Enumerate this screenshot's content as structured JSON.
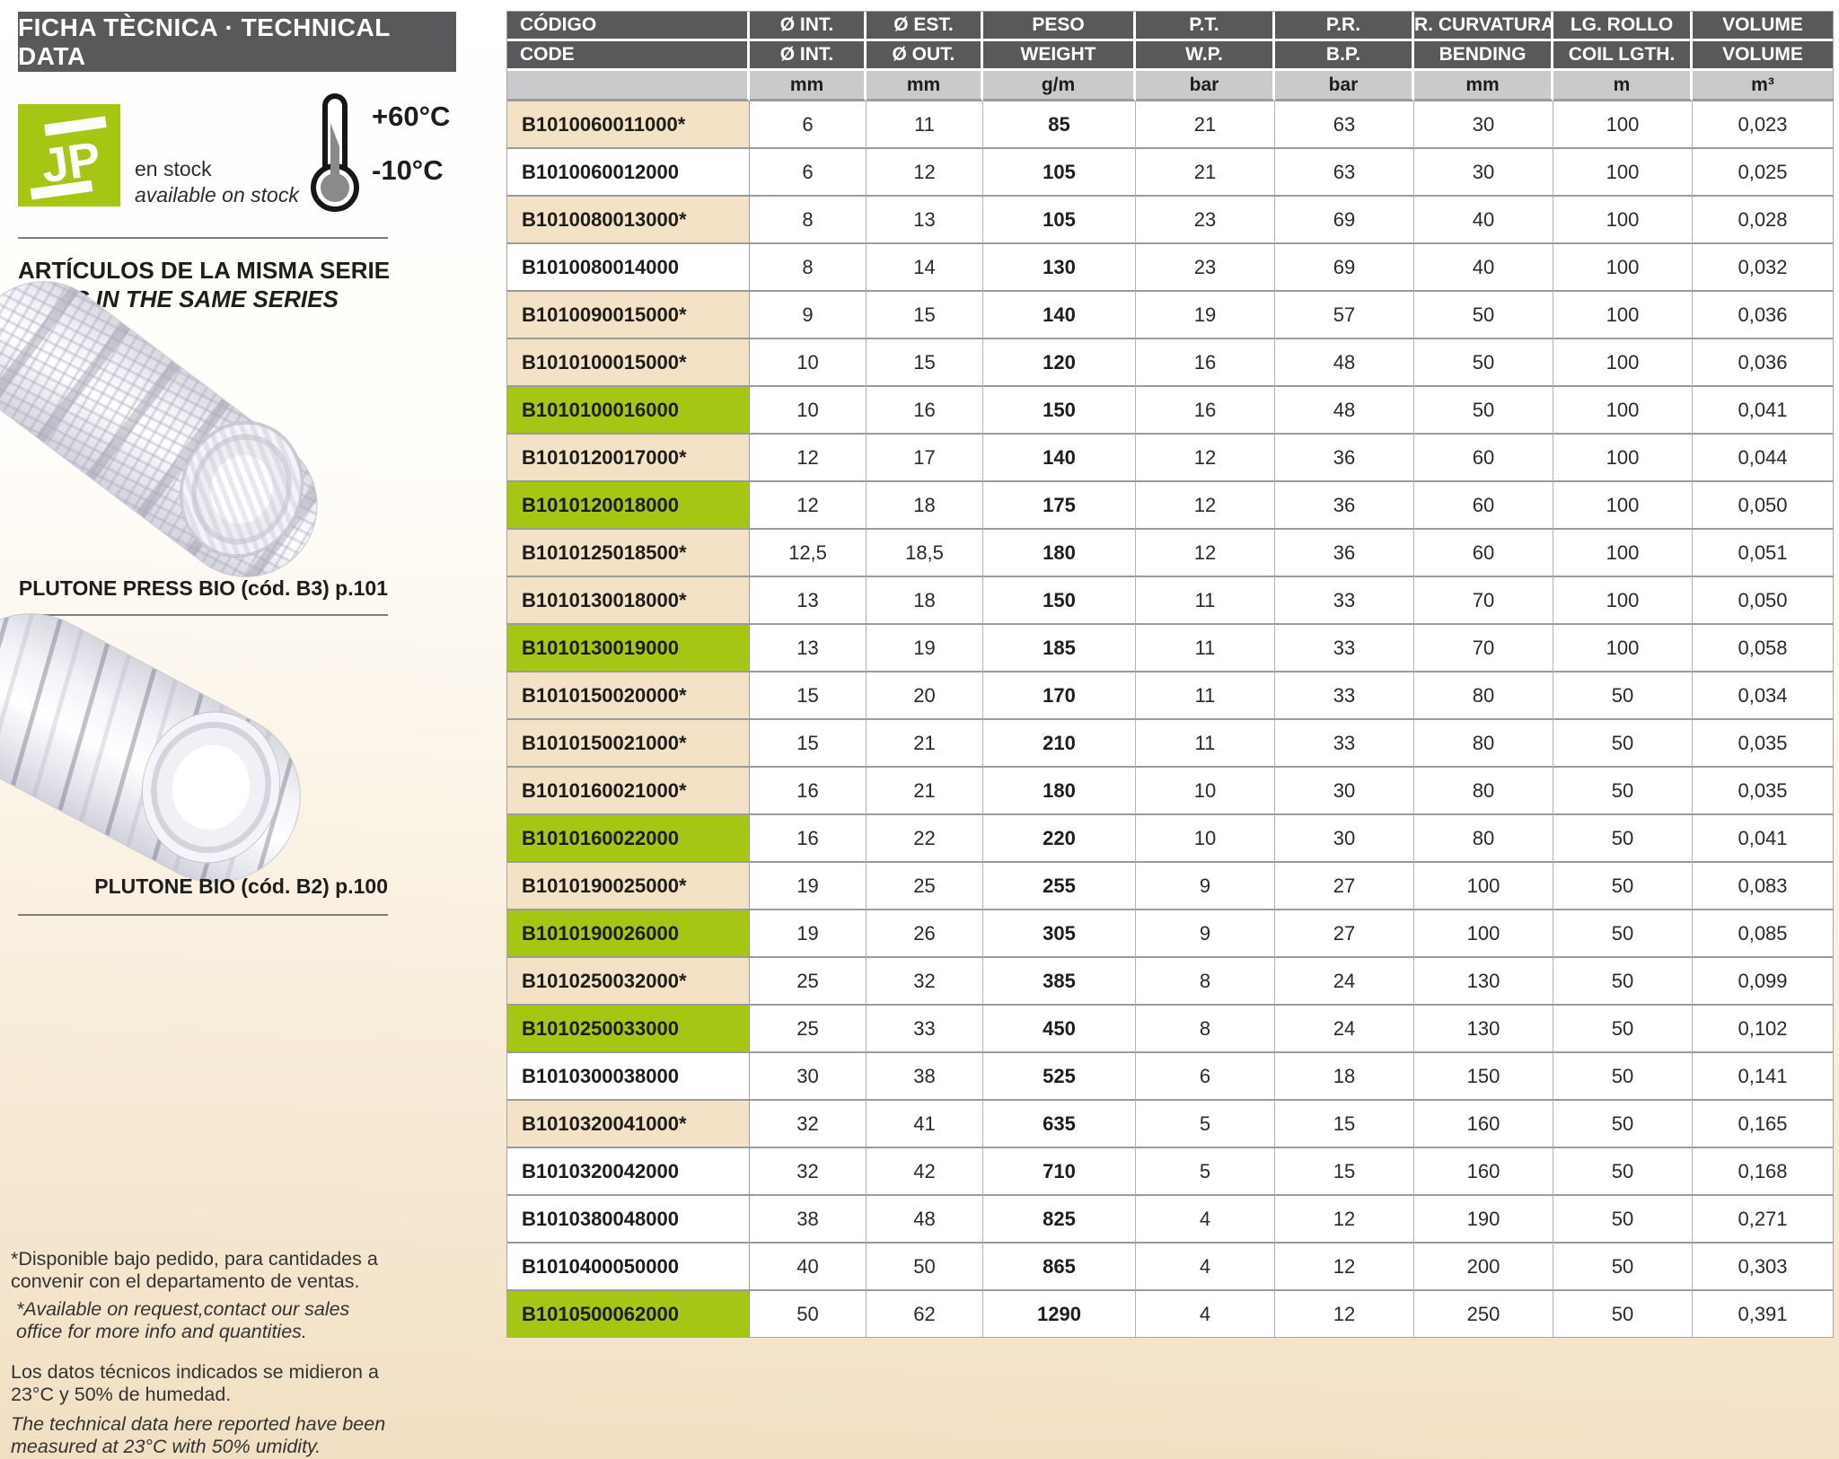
{
  "header": {
    "title": "FICHA TÈCNICA · TECHNICAL DATA"
  },
  "stock": {
    "logo_text": "JP",
    "line1": "en stock",
    "line2": "available on stock"
  },
  "temperature": {
    "max": "+60°C",
    "min": "-10°C"
  },
  "series": {
    "title_es": "ARTÍCULOS DE LA MISMA SERIE",
    "title_en": "ITEMS IN THE SAME SERIES",
    "items": [
      {
        "caption": "PLUTONE PRESS BIO (cód. B3) p.101"
      },
      {
        "caption": "PLUTONE BIO (cód. B2) p.100"
      }
    ]
  },
  "footnotes": {
    "es1": "*Disponible bajo pedido, para cantidades a convenir con el departamento de ventas.",
    "en1": "*Available on request,contact our sales office for more info and quantities.",
    "es2": "Los datos técnicos indicados se midieron a 23°C y 50% de humedad.",
    "en2": "The technical data here reported have been measured at 23°C with 50% umidity."
  },
  "table": {
    "headers_row1": [
      "CÓDIGO",
      "Ø INT.",
      "Ø EST.",
      "PESO",
      "P.T.",
      "P.R.",
      "R. CURVATURA",
      "LG. ROLLO",
      "VOLUME"
    ],
    "headers_row2": [
      "CODE",
      "Ø INT.",
      "Ø OUT.",
      "WEIGHT",
      "W.P.",
      "B.P.",
      "BENDING",
      "COIL LGTH.",
      "VOLUME"
    ],
    "units": [
      "",
      "mm",
      "mm",
      "g/m",
      "bar",
      "bar",
      "mm",
      "m",
      "m³"
    ],
    "rows": [
      {
        "code": "B1010060011000*",
        "highlight": "beige",
        "values": [
          "6",
          "11",
          "85",
          "21",
          "63",
          "30",
          "100",
          "0,023"
        ]
      },
      {
        "code": "B1010060012000",
        "highlight": "white",
        "values": [
          "6",
          "12",
          "105",
          "21",
          "63",
          "30",
          "100",
          "0,025"
        ]
      },
      {
        "code": "B1010080013000*",
        "highlight": "beige",
        "values": [
          "8",
          "13",
          "105",
          "23",
          "69",
          "40",
          "100",
          "0,028"
        ]
      },
      {
        "code": "B1010080014000",
        "highlight": "white",
        "values": [
          "8",
          "14",
          "130",
          "23",
          "69",
          "40",
          "100",
          "0,032"
        ]
      },
      {
        "code": "B1010090015000*",
        "highlight": "beige",
        "values": [
          "9",
          "15",
          "140",
          "19",
          "57",
          "50",
          "100",
          "0,036"
        ]
      },
      {
        "code": "B1010100015000*",
        "highlight": "beige",
        "values": [
          "10",
          "15",
          "120",
          "16",
          "48",
          "50",
          "100",
          "0,036"
        ]
      },
      {
        "code": "B1010100016000",
        "highlight": "green",
        "values": [
          "10",
          "16",
          "150",
          "16",
          "48",
          "50",
          "100",
          "0,041"
        ]
      },
      {
        "code": "B1010120017000*",
        "highlight": "beige",
        "values": [
          "12",
          "17",
          "140",
          "12",
          "36",
          "60",
          "100",
          "0,044"
        ]
      },
      {
        "code": "B1010120018000",
        "highlight": "green",
        "values": [
          "12",
          "18",
          "175",
          "12",
          "36",
          "60",
          "100",
          "0,050"
        ]
      },
      {
        "code": "B1010125018500*",
        "highlight": "beige",
        "values": [
          "12,5",
          "18,5",
          "180",
          "12",
          "36",
          "60",
          "100",
          "0,051"
        ]
      },
      {
        "code": "B1010130018000*",
        "highlight": "beige",
        "values": [
          "13",
          "18",
          "150",
          "11",
          "33",
          "70",
          "100",
          "0,050"
        ]
      },
      {
        "code": "B1010130019000",
        "highlight": "green",
        "values": [
          "13",
          "19",
          "185",
          "11",
          "33",
          "70",
          "100",
          "0,058"
        ]
      },
      {
        "code": "B1010150020000*",
        "highlight": "beige",
        "values": [
          "15",
          "20",
          "170",
          "11",
          "33",
          "80",
          "50",
          "0,034"
        ]
      },
      {
        "code": "B1010150021000*",
        "highlight": "beige",
        "values": [
          "15",
          "21",
          "210",
          "11",
          "33",
          "80",
          "50",
          "0,035"
        ]
      },
      {
        "code": "B1010160021000*",
        "highlight": "beige",
        "values": [
          "16",
          "21",
          "180",
          "10",
          "30",
          "80",
          "50",
          "0,035"
        ]
      },
      {
        "code": "B1010160022000",
        "highlight": "green",
        "values": [
          "16",
          "22",
          "220",
          "10",
          "30",
          "80",
          "50",
          "0,041"
        ]
      },
      {
        "code": "B1010190025000*",
        "highlight": "beige",
        "values": [
          "19",
          "25",
          "255",
          "9",
          "27",
          "100",
          "50",
          "0,083"
        ]
      },
      {
        "code": "B1010190026000",
        "highlight": "green",
        "values": [
          "19",
          "26",
          "305",
          "9",
          "27",
          "100",
          "50",
          "0,085"
        ]
      },
      {
        "code": "B1010250032000*",
        "highlight": "beige",
        "values": [
          "25",
          "32",
          "385",
          "8",
          "24",
          "130",
          "50",
          "0,099"
        ]
      },
      {
        "code": "B1010250033000",
        "highlight": "green",
        "values": [
          "25",
          "33",
          "450",
          "8",
          "24",
          "130",
          "50",
          "0,102"
        ]
      },
      {
        "code": "B1010300038000",
        "highlight": "white",
        "values": [
          "30",
          "38",
          "525",
          "6",
          "18",
          "150",
          "50",
          "0,141"
        ]
      },
      {
        "code": "B1010320041000*",
        "highlight": "beige",
        "values": [
          "32",
          "41",
          "635",
          "5",
          "15",
          "160",
          "50",
          "0,165"
        ]
      },
      {
        "code": "B1010320042000",
        "highlight": "white",
        "values": [
          "32",
          "42",
          "710",
          "5",
          "15",
          "160",
          "50",
          "0,168"
        ]
      },
      {
        "code": "B1010380048000",
        "highlight": "white",
        "values": [
          "38",
          "48",
          "825",
          "4",
          "12",
          "190",
          "50",
          "0,271"
        ]
      },
      {
        "code": "B1010400050000",
        "highlight": "white",
        "values": [
          "40",
          "50",
          "865",
          "4",
          "12",
          "200",
          "50",
          "0,303"
        ]
      },
      {
        "code": "B1010500062000",
        "highlight": "green",
        "values": [
          "50",
          "62",
          "1290",
          "4",
          "12",
          "250",
          "50",
          "0,391"
        ]
      }
    ]
  },
  "colors": {
    "header_dark": "#58595b",
    "units_gray": "#c9cacc",
    "row_green": "#a6c614",
    "row_beige": "#f3e2c5",
    "logo_green": "#a6c614",
    "border_gray": "#9b9b9b"
  }
}
